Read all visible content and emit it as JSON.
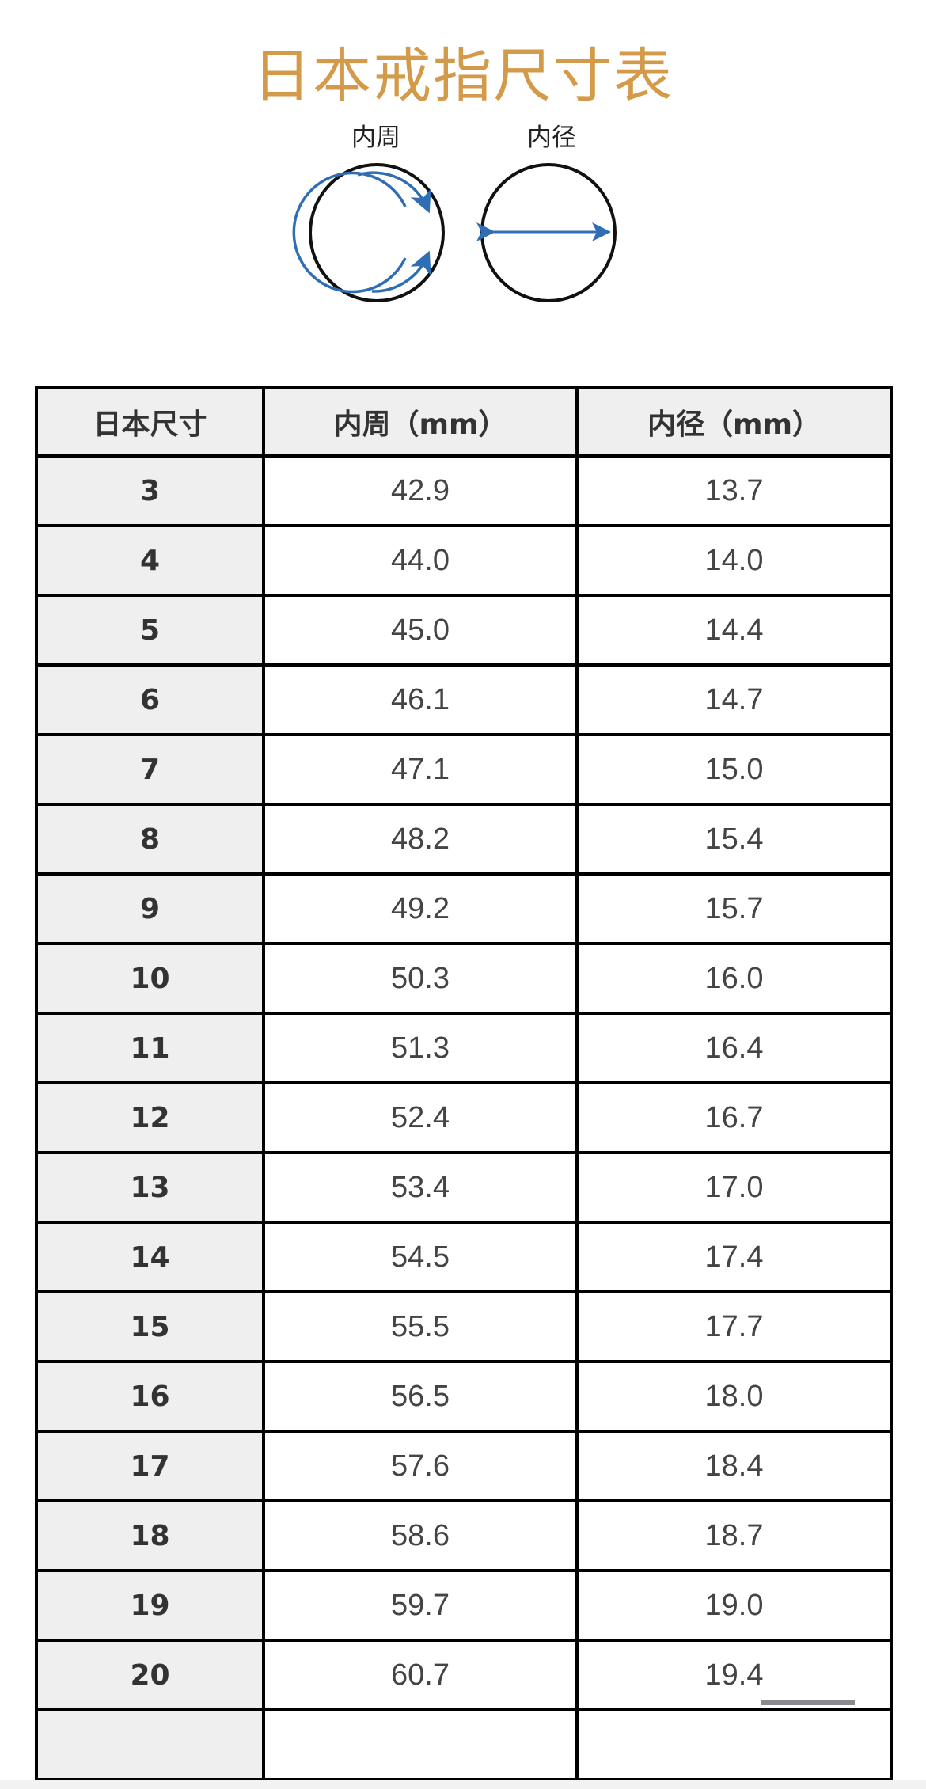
{
  "title": "日本戒指尺寸表",
  "diagram": {
    "circumference_label": "内周",
    "diameter_label": "内径",
    "arrow_color": "#2f6db5",
    "ring_color": "#111111"
  },
  "colors": {
    "title": "#d39a49",
    "header_bg": "#efefef"
  },
  "table": {
    "headers": [
      "日本尺寸",
      "内周（mm）",
      "内径（mm）"
    ],
    "rows": [
      [
        "3",
        "42.9",
        "13.7"
      ],
      [
        "4",
        "44.0",
        "14.0"
      ],
      [
        "5",
        "45.0",
        "14.4"
      ],
      [
        "6",
        "46.1",
        "14.7"
      ],
      [
        "7",
        "47.1",
        "15.0"
      ],
      [
        "8",
        "48.2",
        "15.4"
      ],
      [
        "9",
        "49.2",
        "15.7"
      ],
      [
        "10",
        "50.3",
        "16.0"
      ],
      [
        "11",
        "51.3",
        "16.4"
      ],
      [
        "12",
        "52.4",
        "16.7"
      ],
      [
        "13",
        "53.4",
        "17.0"
      ],
      [
        "14",
        "54.5",
        "17.4"
      ],
      [
        "15",
        "55.5",
        "17.7"
      ],
      [
        "16",
        "56.5",
        "18.0"
      ],
      [
        "17",
        "57.6",
        "18.4"
      ],
      [
        "18",
        "58.6",
        "18.7"
      ],
      [
        "19",
        "59.7",
        "19.0"
      ],
      [
        "20",
        "60.7",
        "19.4"
      ],
      [
        "",
        "",
        ""
      ]
    ]
  }
}
